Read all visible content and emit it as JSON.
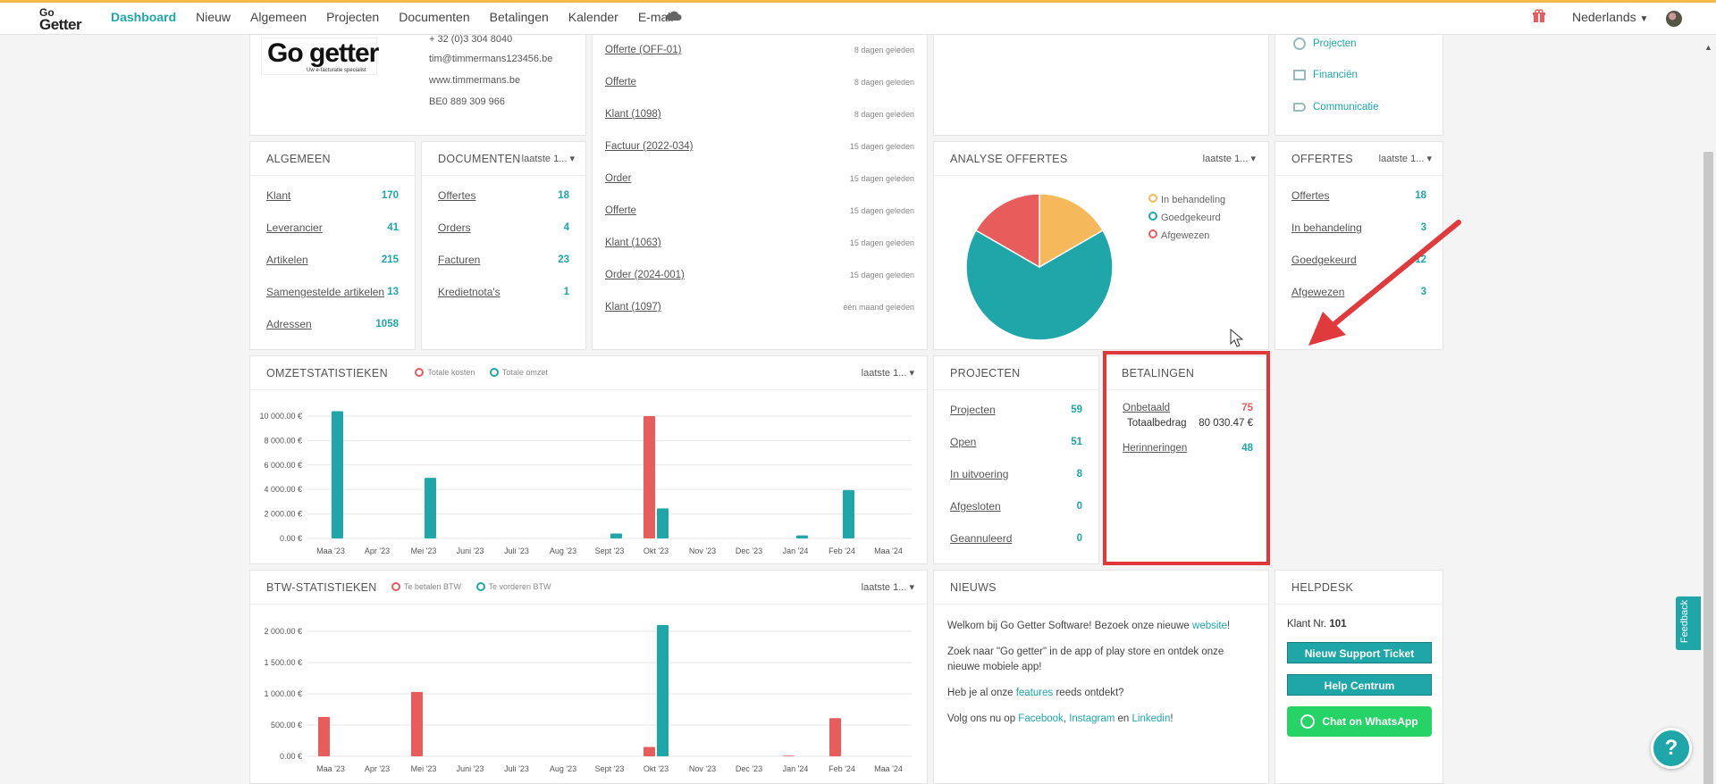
{
  "nav": {
    "logo_top": "Go",
    "logo_bottom": "Getter",
    "items": [
      "Dashboard",
      "Nieuw",
      "Algemeen",
      "Projecten",
      "Documenten",
      "Betalingen",
      "Kalender",
      "E-mail"
    ],
    "language": "Nederlands"
  },
  "company": {
    "logo_text": "Go getter",
    "logo_tagline": "Uw e-facturatie specialist",
    "phone": "+ 32 (0)3 304 8040",
    "email": "tim@timmermans123456.be",
    "website": "www.timmermans.be",
    "vat": "BE0 889 309 966"
  },
  "feed": [
    {
      "label": "Offerte (OFF-01)",
      "ago": "8 dagen geleden"
    },
    {
      "label": "Offerte",
      "ago": "8 dagen geleden"
    },
    {
      "label": "Klant (1098)",
      "ago": "8 dagen geleden"
    },
    {
      "label": "Factuur (2022-034)",
      "ago": "15 dagen geleden"
    },
    {
      "label": "Order",
      "ago": "15 dagen geleden"
    },
    {
      "label": "Offerte",
      "ago": "15 dagen geleden"
    },
    {
      "label": "Klant (1063)",
      "ago": "15 dagen geleden"
    },
    {
      "label": "Order (2024-001)",
      "ago": "15 dagen geleden"
    },
    {
      "label": "Klant (1097)",
      "ago": "één maand geleden"
    }
  ],
  "quicklinks": [
    "Projecten",
    "Financiën",
    "Communicatie"
  ],
  "algemeen": {
    "title": "ALGEMEEN",
    "rows": [
      {
        "label": "Klant",
        "value": "170"
      },
      {
        "label": "Leverancier",
        "value": "41"
      },
      {
        "label": "Artikelen",
        "value": "215"
      },
      {
        "label": "Samengestelde artikelen",
        "value": "13"
      },
      {
        "label": "Adressen",
        "value": "1058"
      }
    ]
  },
  "documenten": {
    "title": "DOCUMENTEN",
    "select": "laatste 1...",
    "rows": [
      {
        "label": "Offertes",
        "value": "18"
      },
      {
        "label": "Orders",
        "value": "4"
      },
      {
        "label": "Facturen",
        "value": "23"
      },
      {
        "label": "Kredietnota's",
        "value": "1"
      }
    ]
  },
  "analyse": {
    "title": "ANALYSE OFFERTES",
    "select": "laatste 1...",
    "legend": [
      "In behandeling",
      "Goedgekeurd",
      "Afgewezen"
    ]
  },
  "offertes": {
    "title": "OFFERTES",
    "select": "laatste 1...",
    "rows": [
      {
        "label": "Offertes",
        "value": "18"
      },
      {
        "label": "In behandeling",
        "value": "3"
      },
      {
        "label": "Goedgekeurd",
        "value": "12"
      },
      {
        "label": "Afgewezen",
        "value": "3"
      }
    ]
  },
  "omzet": {
    "title": "OMZETSTATISTIEKEN",
    "select": "laatste 1...",
    "legend": [
      "Totale kosten",
      "Totale omzet"
    ]
  },
  "projecten": {
    "title": "PROJECTEN",
    "rows": [
      {
        "label": "Projecten",
        "value": "59"
      },
      {
        "label": "Open",
        "value": "51"
      },
      {
        "label": "In uitvoering",
        "value": "8"
      },
      {
        "label": "Afgesloten",
        "value": "0"
      },
      {
        "label": "Geannuleerd",
        "value": "0"
      }
    ]
  },
  "betalingen": {
    "title": "BETALINGEN",
    "unpaid_label": "Onbetaald",
    "unpaid_value": "75",
    "total_label": "Totaalbedrag",
    "total_value": "80 030.47 €",
    "reminders_label": "Herinneringen",
    "reminders_value": "48"
  },
  "btw": {
    "title": "BTW-STATISTIEKEN",
    "select": "laatste 1...",
    "legend": [
      "Te betalen BTW",
      "Te vorderen BTW"
    ]
  },
  "nieuws": {
    "title": "NIEUWS",
    "p1_pre": "Welkom bij Go Getter Software! Bezoek onze nieuwe ",
    "p1_link": "website",
    "p1_post": "!",
    "p2": "Zoek naar \"Go getter\" in de app of play store en ontdek onze nieuwe mobiele app!",
    "p3_pre": "Heb je al onze ",
    "p3_link": "features",
    "p3_post": " reeds ontdekt?",
    "p4_pre": "Volg ons nu op ",
    "p4_l1": "Facebook",
    "p4_sep1": ", ",
    "p4_l2": "Instagram",
    "p4_sep2": " en ",
    "p4_l3": "Linkedin",
    "p4_post": "!"
  },
  "helpdesk": {
    "title": "HELPDESK",
    "klant_label": "Klant Nr.",
    "klant_nr": "101",
    "btn_ticket": "Nieuw Support Ticket",
    "btn_help": "Help Centrum",
    "btn_whatsapp": "Chat on WhatsApp"
  },
  "feedback_tab": "Feedback",
  "help_fab": "?",
  "colors": {
    "teal": "#1fa6a8",
    "red": "#e85c5c",
    "orange": "#f5b95c",
    "highlight": "#e0383a"
  },
  "chart_data": [
    {
      "type": "pie",
      "labels": [
        "In behandeling",
        "Goedgekeurd",
        "Afgewezen"
      ],
      "values": [
        3,
        12,
        3
      ],
      "colors": [
        "#f5b95c",
        "#1fa6a8",
        "#e85c5c"
      ]
    },
    {
      "type": "bar",
      "categories": [
        "Maa '23",
        "Apr '23",
        "Mei '23",
        "Juni '23",
        "Juli '23",
        "Aug '23",
        "Sept '23",
        "Okt '23",
        "Nov '23",
        "Dec '23",
        "Jan '24",
        "Feb '24",
        "Maa '24"
      ],
      "series": [
        {
          "name": "Totale kosten",
          "color": "#e85c5c",
          "values": [
            0,
            0,
            0,
            0,
            0,
            0,
            0,
            10000,
            0,
            0,
            0,
            0,
            0
          ]
        },
        {
          "name": "Totale omzet",
          "color": "#1fa6a8",
          "values": [
            10400,
            0,
            4950,
            0,
            0,
            0,
            400,
            2450,
            0,
            0,
            250,
            3950,
            0
          ]
        }
      ],
      "yticks": [
        "0.00 €",
        "2 000.00 €",
        "4 000.00 €",
        "6 000.00 €",
        "8 000.00 €",
        "10 000.00 €"
      ],
      "ylim": [
        0,
        10800
      ]
    },
    {
      "type": "bar",
      "categories": [
        "Maa '23",
        "Apr '23",
        "Mei '23",
        "Juni '23",
        "Juli '23",
        "Aug '23",
        "Sept '23",
        "Okt '23",
        "Nov '23",
        "Dec '23",
        "Jan '24",
        "Feb '24",
        "Maa '24"
      ],
      "series": [
        {
          "name": "Te betalen BTW",
          "color": "#e85c5c",
          "values": [
            630,
            0,
            1030,
            0,
            0,
            0,
            0,
            150,
            0,
            0,
            10,
            610,
            0
          ]
        },
        {
          "name": "Te vorderen BTW",
          "color": "#1fa6a8",
          "values": [
            0,
            0,
            0,
            0,
            0,
            0,
            0,
            2100,
            0,
            0,
            0,
            0,
            0
          ]
        }
      ],
      "yticks": [
        "0.00 €",
        "500.00 €",
        "1 000.00 €",
        "1 500.00 €",
        "2 000.00 €"
      ],
      "ylim": [
        0,
        2200
      ]
    }
  ]
}
